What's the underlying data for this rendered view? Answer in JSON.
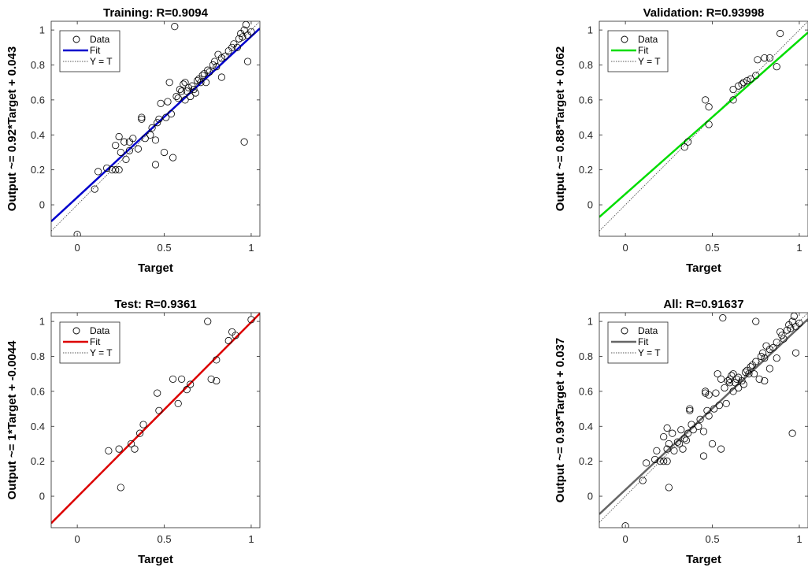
{
  "chart_data": [
    {
      "type": "scatter",
      "title": "Training: R=0.9094",
      "xlabel": "Target",
      "ylabel": "Output ~= 0.92*Target + 0.043",
      "xlim": [
        -0.15,
        1.05
      ],
      "ylim": [
        -0.18,
        1.05
      ],
      "xticks": [
        "0",
        "0.5",
        "1"
      ],
      "yticks": [
        "0",
        "0.2",
        "0.4",
        "0.6",
        "0.8",
        "1"
      ],
      "fit": {
        "slope": 0.92,
        "intercept": 0.043,
        "color": "#0000cc"
      },
      "legend": {
        "placement": "top-left",
        "entries": [
          "Data",
          "Fit",
          "Y = T"
        ]
      },
      "grid": false,
      "points": [
        [
          0.0,
          -0.17
        ],
        [
          0.1,
          0.09
        ],
        [
          0.12,
          0.19
        ],
        [
          0.17,
          0.21
        ],
        [
          0.2,
          0.2
        ],
        [
          0.22,
          0.2
        ],
        [
          0.24,
          0.2
        ],
        [
          0.22,
          0.34
        ],
        [
          0.24,
          0.39
        ],
        [
          0.25,
          0.3
        ],
        [
          0.27,
          0.36
        ],
        [
          0.28,
          0.26
        ],
        [
          0.3,
          0.31
        ],
        [
          0.3,
          0.36
        ],
        [
          0.32,
          0.38
        ],
        [
          0.35,
          0.32
        ],
        [
          0.37,
          0.5
        ],
        [
          0.37,
          0.49
        ],
        [
          0.39,
          0.38
        ],
        [
          0.42,
          0.4
        ],
        [
          0.43,
          0.44
        ],
        [
          0.45,
          0.23
        ],
        [
          0.45,
          0.37
        ],
        [
          0.46,
          0.47
        ],
        [
          0.47,
          0.49
        ],
        [
          0.48,
          0.58
        ],
        [
          0.5,
          0.3
        ],
        [
          0.51,
          0.5
        ],
        [
          0.52,
          0.59
        ],
        [
          0.53,
          0.7
        ],
        [
          0.54,
          0.52
        ],
        [
          0.55,
          0.27
        ],
        [
          0.56,
          1.02
        ],
        [
          0.57,
          0.62
        ],
        [
          0.58,
          0.61
        ],
        [
          0.59,
          0.66
        ],
        [
          0.6,
          0.65
        ],
        [
          0.61,
          0.69
        ],
        [
          0.62,
          0.6
        ],
        [
          0.62,
          0.7
        ],
        [
          0.63,
          0.65
        ],
        [
          0.64,
          0.67
        ],
        [
          0.65,
          0.62
        ],
        [
          0.66,
          0.68
        ],
        [
          0.67,
          0.66
        ],
        [
          0.68,
          0.64
        ],
        [
          0.69,
          0.71
        ],
        [
          0.7,
          0.72
        ],
        [
          0.71,
          0.7
        ],
        [
          0.72,
          0.74
        ],
        [
          0.73,
          0.75
        ],
        [
          0.74,
          0.7
        ],
        [
          0.75,
          0.77
        ],
        [
          0.76,
          0.76
        ],
        [
          0.78,
          0.8
        ],
        [
          0.79,
          0.82
        ],
        [
          0.8,
          0.79
        ],
        [
          0.81,
          0.86
        ],
        [
          0.83,
          0.84
        ],
        [
          0.83,
          0.73
        ],
        [
          0.85,
          0.85
        ],
        [
          0.87,
          0.88
        ],
        [
          0.89,
          0.9
        ],
        [
          0.9,
          0.92
        ],
        [
          0.92,
          0.9
        ],
        [
          0.93,
          0.95
        ],
        [
          0.94,
          0.98
        ],
        [
          0.95,
          0.96
        ],
        [
          0.96,
          1.0
        ],
        [
          0.96,
          0.36
        ],
        [
          0.97,
          1.03
        ],
        [
          0.98,
          0.97
        ],
        [
          0.98,
          0.82
        ],
        [
          1.0,
          0.99
        ]
      ]
    },
    {
      "type": "scatter",
      "title": "Validation: R=0.93998",
      "xlabel": "Target",
      "ylabel": "Output ~= 0.88*Target + 0.062",
      "xlim": [
        -0.15,
        1.05
      ],
      "ylim": [
        -0.18,
        1.05
      ],
      "xticks": [
        "0",
        "0.5",
        "1"
      ],
      "yticks": [
        "0",
        "0.2",
        "0.4",
        "0.6",
        "0.8",
        "1"
      ],
      "fit": {
        "slope": 0.88,
        "intercept": 0.062,
        "color": "#00dd00"
      },
      "legend": {
        "placement": "top-left",
        "entries": [
          "Data",
          "Fit",
          "Y = T"
        ]
      },
      "grid": false,
      "points": [
        [
          0.34,
          0.33
        ],
        [
          0.36,
          0.36
        ],
        [
          0.46,
          0.6
        ],
        [
          0.48,
          0.46
        ],
        [
          0.48,
          0.56
        ],
        [
          0.62,
          0.6
        ],
        [
          0.62,
          0.66
        ],
        [
          0.65,
          0.68
        ],
        [
          0.67,
          0.69
        ],
        [
          0.68,
          0.7
        ],
        [
          0.7,
          0.71
        ],
        [
          0.72,
          0.72
        ],
        [
          0.75,
          0.74
        ],
        [
          0.76,
          0.83
        ],
        [
          0.8,
          0.84
        ],
        [
          0.83,
          0.84
        ],
        [
          0.87,
          0.79
        ],
        [
          0.89,
          0.98
        ]
      ]
    },
    {
      "type": "scatter",
      "title": "Test: R=0.9361",
      "xlabel": "Target",
      "ylabel": "Output ~= 1*Target + -0.0044",
      "xlim": [
        -0.15,
        1.05
      ],
      "ylim": [
        -0.18,
        1.05
      ],
      "xticks": [
        "0",
        "0.5",
        "1"
      ],
      "yticks": [
        "0",
        "0.2",
        "0.4",
        "0.6",
        "0.8",
        "1"
      ],
      "fit": {
        "slope": 1.0,
        "intercept": -0.0044,
        "color": "#dd0000"
      },
      "legend": {
        "placement": "top-left",
        "entries": [
          "Data",
          "Fit",
          "Y = T"
        ]
      },
      "grid": false,
      "points": [
        [
          0.18,
          0.26
        ],
        [
          0.24,
          0.27
        ],
        [
          0.25,
          0.05
        ],
        [
          0.31,
          0.3
        ],
        [
          0.33,
          0.27
        ],
        [
          0.36,
          0.36
        ],
        [
          0.38,
          0.41
        ],
        [
          0.46,
          0.59
        ],
        [
          0.47,
          0.49
        ],
        [
          0.55,
          0.67
        ],
        [
          0.58,
          0.53
        ],
        [
          0.6,
          0.67
        ],
        [
          0.63,
          0.61
        ],
        [
          0.65,
          0.64
        ],
        [
          0.75,
          1.0
        ],
        [
          0.77,
          0.67
        ],
        [
          0.8,
          0.66
        ],
        [
          0.8,
          0.78
        ],
        [
          0.87,
          0.89
        ],
        [
          0.89,
          0.94
        ],
        [
          0.91,
          0.92
        ],
        [
          1.0,
          1.01
        ]
      ]
    },
    {
      "type": "scatter",
      "title": "All: R=0.91637",
      "xlabel": "Target",
      "ylabel": "Output ~= 0.93*Target + 0.037",
      "xlim": [
        -0.15,
        1.05
      ],
      "ylim": [
        -0.18,
        1.05
      ],
      "xticks": [
        "0",
        "0.5",
        "1"
      ],
      "yticks": [
        "0",
        "0.2",
        "0.4",
        "0.6",
        "0.8",
        "1"
      ],
      "fit": {
        "slope": 0.93,
        "intercept": 0.037,
        "color": "#666666"
      },
      "legend": {
        "placement": "top-left",
        "entries": [
          "Data",
          "Fit",
          "Y = T"
        ]
      },
      "grid": false,
      "points": [
        [
          0.0,
          -0.17
        ],
        [
          0.1,
          0.09
        ],
        [
          0.12,
          0.19
        ],
        [
          0.17,
          0.21
        ],
        [
          0.18,
          0.26
        ],
        [
          0.2,
          0.2
        ],
        [
          0.22,
          0.2
        ],
        [
          0.24,
          0.2
        ],
        [
          0.24,
          0.27
        ],
        [
          0.25,
          0.05
        ],
        [
          0.22,
          0.34
        ],
        [
          0.24,
          0.39
        ],
        [
          0.25,
          0.3
        ],
        [
          0.27,
          0.36
        ],
        [
          0.28,
          0.26
        ],
        [
          0.3,
          0.31
        ],
        [
          0.31,
          0.3
        ],
        [
          0.32,
          0.38
        ],
        [
          0.33,
          0.27
        ],
        [
          0.34,
          0.33
        ],
        [
          0.35,
          0.32
        ],
        [
          0.36,
          0.36
        ],
        [
          0.37,
          0.5
        ],
        [
          0.37,
          0.49
        ],
        [
          0.38,
          0.41
        ],
        [
          0.39,
          0.38
        ],
        [
          0.42,
          0.4
        ],
        [
          0.43,
          0.44
        ],
        [
          0.45,
          0.23
        ],
        [
          0.45,
          0.37
        ],
        [
          0.46,
          0.6
        ],
        [
          0.46,
          0.59
        ],
        [
          0.47,
          0.49
        ],
        [
          0.48,
          0.46
        ],
        [
          0.48,
          0.58
        ],
        [
          0.5,
          0.3
        ],
        [
          0.51,
          0.5
        ],
        [
          0.52,
          0.59
        ],
        [
          0.53,
          0.7
        ],
        [
          0.54,
          0.52
        ],
        [
          0.55,
          0.27
        ],
        [
          0.55,
          0.67
        ],
        [
          0.56,
          1.02
        ],
        [
          0.57,
          0.62
        ],
        [
          0.58,
          0.53
        ],
        [
          0.59,
          0.66
        ],
        [
          0.6,
          0.65
        ],
        [
          0.6,
          0.67
        ],
        [
          0.61,
          0.69
        ],
        [
          0.62,
          0.6
        ],
        [
          0.62,
          0.7
        ],
        [
          0.63,
          0.65
        ],
        [
          0.64,
          0.67
        ],
        [
          0.65,
          0.62
        ],
        [
          0.65,
          0.68
        ],
        [
          0.67,
          0.66
        ],
        [
          0.68,
          0.64
        ],
        [
          0.69,
          0.71
        ],
        [
          0.7,
          0.72
        ],
        [
          0.71,
          0.7
        ],
        [
          0.72,
          0.74
        ],
        [
          0.73,
          0.75
        ],
        [
          0.74,
          0.7
        ],
        [
          0.75,
          1.0
        ],
        [
          0.75,
          0.77
        ],
        [
          0.77,
          0.67
        ],
        [
          0.78,
          0.8
        ],
        [
          0.79,
          0.82
        ],
        [
          0.8,
          0.66
        ],
        [
          0.8,
          0.79
        ],
        [
          0.81,
          0.86
        ],
        [
          0.83,
          0.84
        ],
        [
          0.83,
          0.73
        ],
        [
          0.85,
          0.85
        ],
        [
          0.87,
          0.79
        ],
        [
          0.87,
          0.88
        ],
        [
          0.89,
          0.94
        ],
        [
          0.9,
          0.92
        ],
        [
          0.91,
          0.9
        ],
        [
          0.93,
          0.95
        ],
        [
          0.94,
          0.98
        ],
        [
          0.95,
          0.96
        ],
        [
          0.96,
          1.0
        ],
        [
          0.96,
          0.36
        ],
        [
          0.97,
          1.03
        ],
        [
          0.98,
          0.97
        ],
        [
          0.98,
          0.82
        ],
        [
          1.0,
          0.99
        ]
      ]
    }
  ]
}
